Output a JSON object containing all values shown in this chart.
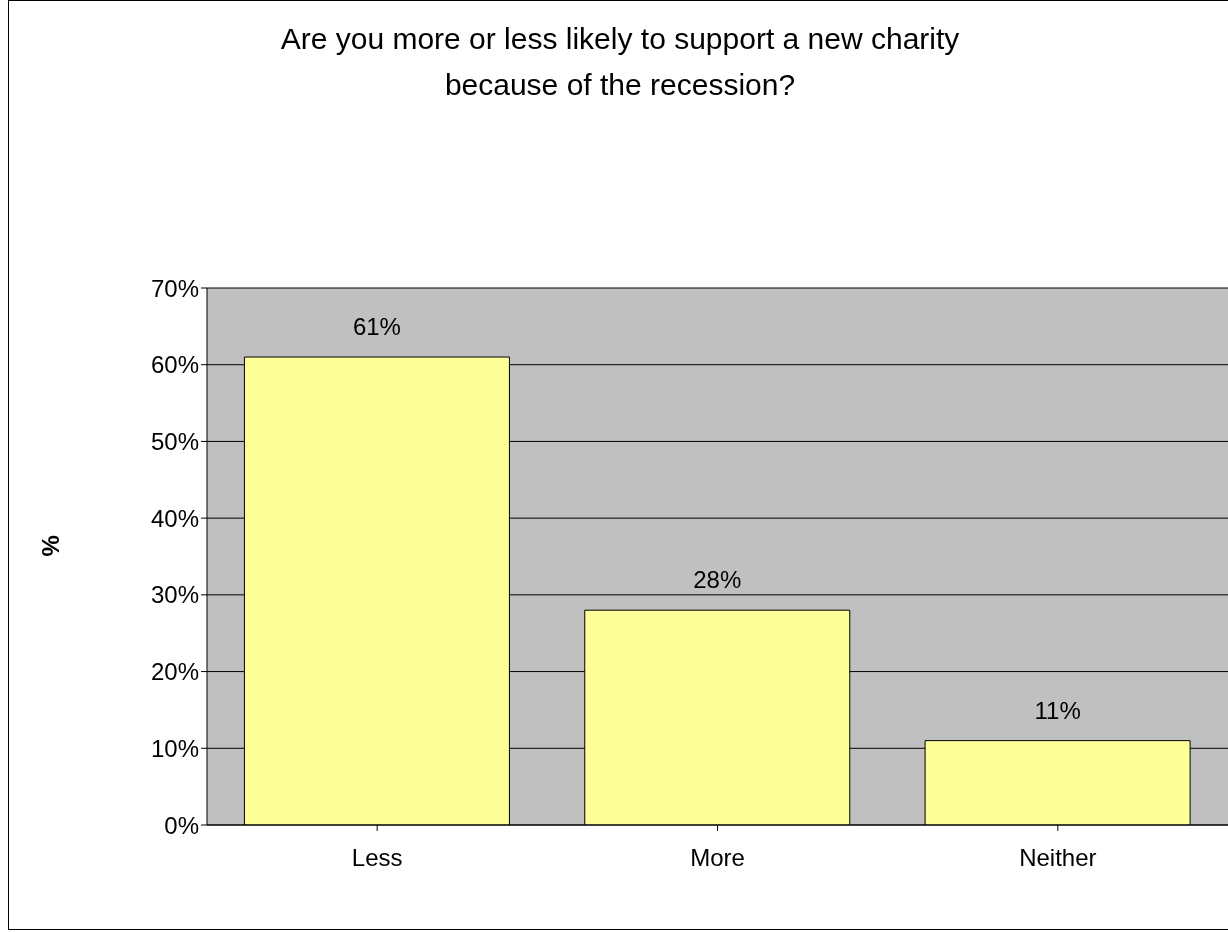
{
  "chart_data": {
    "type": "bar",
    "title": "Are you more or less likely to support a new charity because of the recession?",
    "ylabel": "%",
    "categories": [
      "Less",
      "More",
      "Neither"
    ],
    "values": [
      61,
      28,
      11
    ],
    "color": "#ffff99",
    "value_labels": [
      "61%",
      "28%",
      "11%"
    ],
    "ylim": [
      0,
      70
    ],
    "yticks": [
      {
        "value": 0,
        "label": "0%"
      },
      {
        "value": 10,
        "label": "10%"
      },
      {
        "value": 20,
        "label": "20%"
      },
      {
        "value": 30,
        "label": "30%"
      },
      {
        "value": 40,
        "label": "40%"
      },
      {
        "value": 50,
        "label": "50%"
      },
      {
        "value": 60,
        "label": "60%"
      },
      {
        "value": 70,
        "label": "70%"
      }
    ],
    "grid": "y"
  }
}
